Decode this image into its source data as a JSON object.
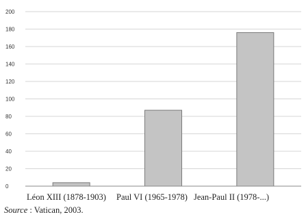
{
  "colors": {
    "bar_fill": "#c4c4c4",
    "bar_stroke": "#7a7a7a",
    "grid": "#d6d6d6",
    "axis": "#888888",
    "text": "#222222"
  },
  "chart_data": {
    "type": "bar",
    "categories": [
      "Léon XIII (1878-1903)",
      "Paul VI (1965-1978)",
      "Jean-Paul II (1978-...)"
    ],
    "values": [
      4,
      87,
      176
    ],
    "ylim": [
      0,
      200
    ],
    "yticks": [
      0,
      20,
      40,
      60,
      80,
      100,
      120,
      140,
      160,
      180,
      200
    ],
    "grid": true,
    "legend": "none"
  },
  "source": {
    "prefix": "Source",
    "text": " : Vatican, 2003."
  }
}
